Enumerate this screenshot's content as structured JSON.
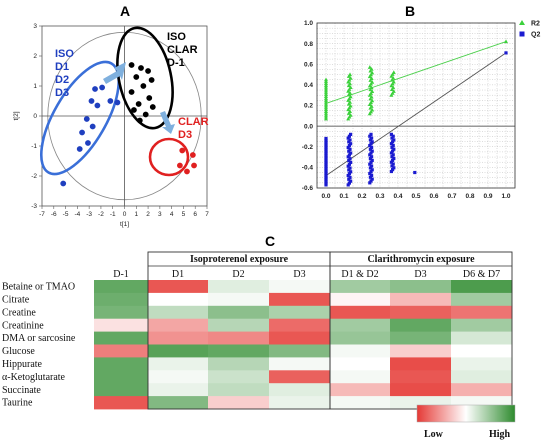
{
  "chart_data": [
    {
      "panel": "A",
      "type": "scatter",
      "xlabel": "t[1]",
      "ylabel": "t[2]",
      "xlim": [
        -7,
        7
      ],
      "ylim": [
        -3,
        3
      ],
      "xticks": [
        "-7",
        "-6",
        "-5",
        "-4",
        "-3",
        "-2",
        "-1",
        "0",
        "1",
        "2",
        "3",
        "4",
        "5",
        "6",
        "7"
      ],
      "yticks": [
        "3",
        "2",
        "1",
        "0",
        "-1",
        "-2",
        "-3"
      ],
      "groups": [
        {
          "label_lines": [
            "ISO",
            "D1",
            "D2",
            "D3"
          ],
          "color": "#1f3fbf",
          "points": [
            [
              -2.5,
              0.9
            ],
            [
              -1.9,
              0.95
            ],
            [
              -1.2,
              0.5
            ],
            [
              -0.6,
              0.45
            ],
            [
              -2.8,
              0.5
            ],
            [
              -2.3,
              0.35
            ],
            [
              -3.2,
              -0.1
            ],
            [
              -2.7,
              -0.35
            ],
            [
              -3.6,
              -0.55
            ],
            [
              -3.1,
              -0.9
            ],
            [
              -3.8,
              -1.1
            ],
            [
              -5.2,
              -2.25
            ]
          ]
        },
        {
          "label_lines": [
            "ISO",
            "CLAR",
            "D-1"
          ],
          "color": "#000000",
          "points": [
            [
              0.6,
              1.7
            ],
            [
              1.4,
              1.6
            ],
            [
              2.0,
              1.5
            ],
            [
              1.0,
              1.3
            ],
            [
              2.3,
              1.2
            ],
            [
              1.6,
              1.0
            ],
            [
              0.6,
              0.8
            ],
            [
              2.1,
              0.6
            ],
            [
              1.2,
              0.4
            ],
            [
              2.4,
              0.3
            ],
            [
              0.8,
              0.2
            ],
            [
              1.8,
              0.05
            ],
            [
              1.3,
              -0.15
            ]
          ]
        },
        {
          "label_lines": [
            "CLAR",
            "D3"
          ],
          "color": "#e02020",
          "points": [
            [
              4.9,
              -1.15
            ],
            [
              5.8,
              -1.3
            ],
            [
              5.9,
              -1.65
            ],
            [
              5.3,
              -1.85
            ],
            [
              4.7,
              -1.65
            ]
          ]
        }
      ]
    },
    {
      "panel": "B",
      "type": "scatter",
      "xlim": [
        -0.05,
        1.05
      ],
      "ylim": [
        -0.6,
        1.0
      ],
      "xticks": [
        "0.0",
        "0.1",
        "0.2",
        "0.3",
        "0.4",
        "0.5",
        "0.6",
        "0.7",
        "0.8",
        "0.9",
        "1.0"
      ],
      "yticks": [
        "1.0",
        "0.8",
        "0.6",
        "0.4",
        "0.2",
        "0.0",
        "-0.2",
        "-0.4",
        "-0.6"
      ],
      "legend_position": "right",
      "series": [
        {
          "name": "R2",
          "color": "#3cd13c",
          "marker": "triangle",
          "regression": [
            [
              0,
              0.22
            ],
            [
              1,
              0.82
            ]
          ],
          "columns": [
            {
              "x": 0.0,
              "ymin": 0.07,
              "ymax": 0.45
            },
            {
              "x": 0.13,
              "ymin": 0.07,
              "ymax": 0.5
            },
            {
              "x": 0.25,
              "ymin": 0.12,
              "ymax": 0.57
            },
            {
              "x": 0.37,
              "ymin": 0.3,
              "ymax": 0.52
            },
            {
              "x": 1.0,
              "ymin": 0.82,
              "ymax": 0.82
            }
          ]
        },
        {
          "name": "Q2",
          "color": "#1b1bd0",
          "marker": "square",
          "regression": [
            [
              0,
              -0.48
            ],
            [
              1,
              0.71
            ]
          ],
          "columns": [
            {
              "x": 0.0,
              "ymin": -0.57,
              "ymax": -0.12
            },
            {
              "x": 0.13,
              "ymin": -0.57,
              "ymax": -0.08
            },
            {
              "x": 0.25,
              "ymin": -0.55,
              "ymax": -0.08
            },
            {
              "x": 0.37,
              "ymin": -0.44,
              "ymax": -0.08
            },
            {
              "x": 0.5,
              "ymin": -0.45,
              "ymax": -0.45
            },
            {
              "x": 1.0,
              "ymin": 0.71,
              "ymax": 0.71
            }
          ]
        }
      ]
    },
    {
      "panel": "C",
      "type": "heatmap",
      "group_headers": [
        "Isoproterenol exposure",
        "Clarithromycin exposure"
      ],
      "columns": [
        "D-1",
        "D1",
        "D2",
        "D3",
        "D1 & D2",
        "D3",
        "D6 & D7"
      ],
      "rows": [
        "Betaine or TMAO",
        "Citrate",
        "Creatine",
        "Creatinine",
        "DMA or sarcosine",
        "Glucose",
        "Hippurate",
        "α-Ketoglutarate",
        "Succinate",
        "Taurine"
      ],
      "scale": {
        "low_label": "Low",
        "high_label": "High",
        "min": -1,
        "max": 1,
        "low_color": "#e53935",
        "mid_color": "#ffffff",
        "high_color": "#2e8b2e"
      },
      "values": [
        [
          0.75,
          -0.85,
          0.15,
          0.05,
          0.45,
          0.55,
          0.85
        ],
        [
          0.7,
          0.0,
          0.05,
          -0.85,
          -0.05,
          -0.35,
          0.45
        ],
        [
          0.65,
          0.3,
          0.55,
          0.4,
          -0.85,
          -0.8,
          -0.7
        ],
        [
          -0.15,
          -0.45,
          0.35,
          -0.75,
          0.45,
          0.75,
          0.45
        ],
        [
          0.75,
          -0.55,
          -0.6,
          -0.85,
          0.5,
          0.65,
          0.2
        ],
        [
          -0.65,
          0.8,
          0.75,
          0.6,
          0.05,
          -0.25,
          0.0
        ],
        [
          0.75,
          0.1,
          0.35,
          0.05,
          0.0,
          -0.9,
          0.1
        ],
        [
          0.75,
          0.05,
          0.25,
          -0.8,
          0.05,
          -0.85,
          0.15
        ],
        [
          0.75,
          0.1,
          0.3,
          0.15,
          -0.35,
          -0.9,
          -0.4
        ],
        [
          -0.85,
          0.6,
          -0.25,
          0.1,
          0.05,
          0.1,
          0.05
        ]
      ]
    }
  ]
}
